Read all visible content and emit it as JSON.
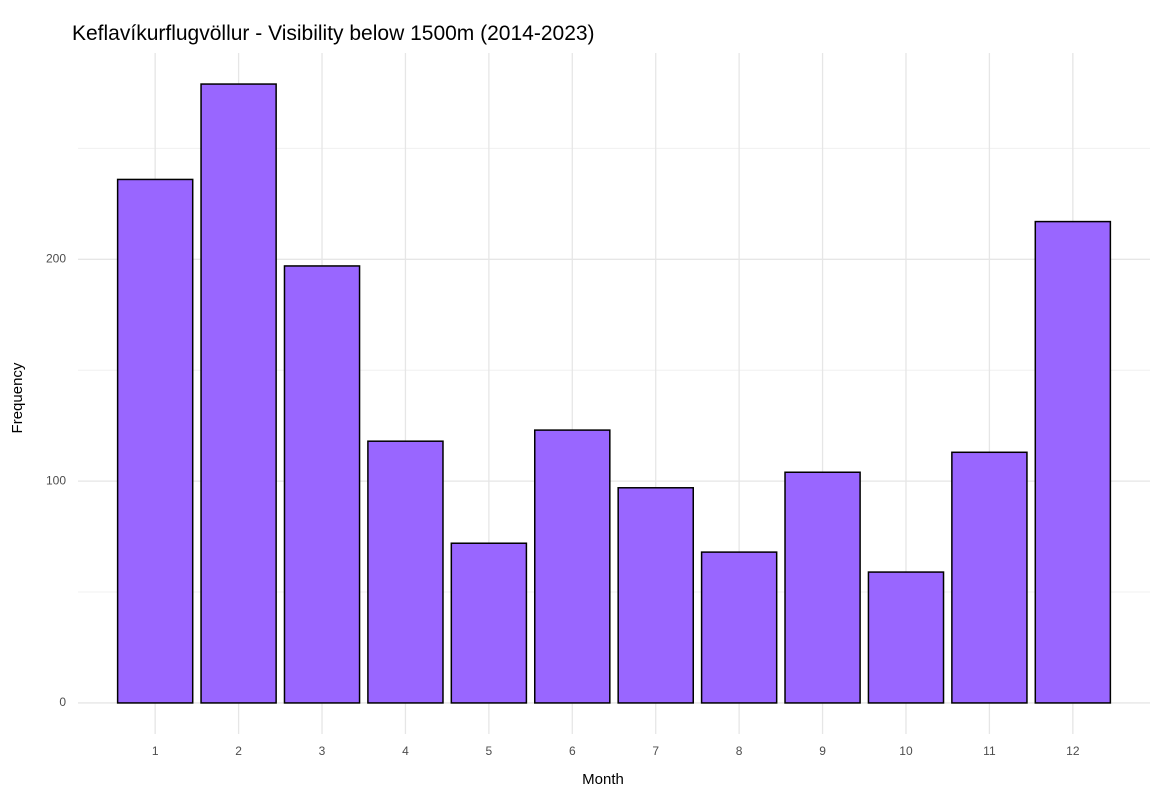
{
  "chart_data": {
    "type": "bar",
    "title": "Keflavíkurflugvöllur - Visibility below 1500m (2014-2023)",
    "x_label": "Month",
    "y_label": "Frequency",
    "categories": [
      "1",
      "2",
      "3",
      "4",
      "5",
      "6",
      "7",
      "8",
      "9",
      "10",
      "11",
      "12"
    ],
    "values": [
      236,
      279,
      197,
      118,
      72,
      123,
      97,
      68,
      104,
      59,
      113,
      217
    ],
    "color": "#9966ff",
    "edge_color": "#000000",
    "ylim": [
      -14,
      293
    ],
    "yticks": [
      0,
      100,
      200
    ],
    "y_minor_grid": [
      50,
      150,
      250
    ],
    "grid": true
  }
}
